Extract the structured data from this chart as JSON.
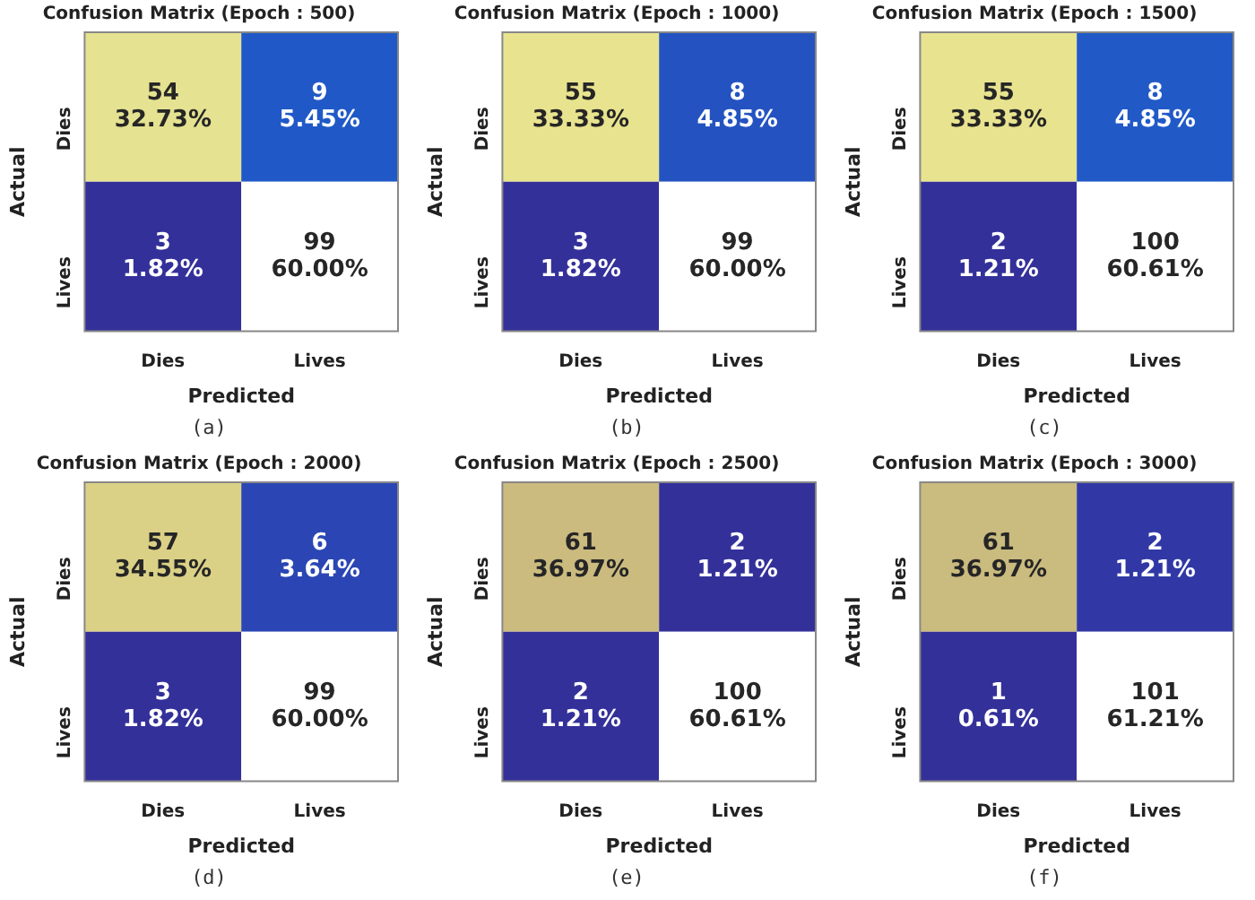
{
  "chart_data": [
    {
      "type": "heatmap",
      "title": "Confusion Matrix (Epoch : 500)",
      "xlabel": "Predicted",
      "ylabel": "Actual",
      "categories": [
        "Dies",
        "Lives"
      ],
      "y_categories": [
        "Dies",
        "Lives"
      ],
      "cells": [
        [
          54,
          9
        ],
        [
          3,
          99
        ]
      ],
      "data_labels": true,
      "annotations": [
        "32.73%",
        "5.45%",
        "1.82%",
        "60.00%",
        "(a)"
      ]
    },
    {
      "type": "heatmap",
      "title": "Confusion Matrix (Epoch : 1000)",
      "xlabel": "Predicted",
      "ylabel": "Actual",
      "categories": [
        "Dies",
        "Lives"
      ],
      "y_categories": [
        "Dies",
        "Lives"
      ],
      "cells": [
        [
          55,
          8
        ],
        [
          3,
          99
        ]
      ],
      "data_labels": true,
      "annotations": [
        "33.33%",
        "4.85%",
        "1.82%",
        "60.00%",
        "(b)"
      ]
    },
    {
      "type": "heatmap",
      "title": "Confusion Matrix (Epoch : 1500)",
      "xlabel": "Predicted",
      "ylabel": "Actual",
      "categories": [
        "Dies",
        "Lives"
      ],
      "y_categories": [
        "Dies",
        "Lives"
      ],
      "cells": [
        [
          55,
          8
        ],
        [
          2,
          100
        ]
      ],
      "data_labels": true,
      "annotations": [
        "33.33%",
        "4.85%",
        "1.21%",
        "60.61%",
        "(c)"
      ]
    },
    {
      "type": "heatmap",
      "title": "Confusion Matrix (Epoch : 2000)",
      "xlabel": "Predicted",
      "ylabel": "Actual",
      "categories": [
        "Dies",
        "Lives"
      ],
      "y_categories": [
        "Dies",
        "Lives"
      ],
      "cells": [
        [
          57,
          6
        ],
        [
          3,
          99
        ]
      ],
      "data_labels": true,
      "annotations": [
        "34.55%",
        "3.64%",
        "1.82%",
        "60.00%",
        "(d)"
      ]
    },
    {
      "type": "heatmap",
      "title": "Confusion Matrix (Epoch : 2500)",
      "xlabel": "Predicted",
      "ylabel": "Actual",
      "categories": [
        "Dies",
        "Lives"
      ],
      "y_categories": [
        "Dies",
        "Lives"
      ],
      "cells": [
        [
          61,
          2
        ],
        [
          2,
          100
        ]
      ],
      "data_labels": true,
      "annotations": [
        "36.97%",
        "1.21%",
        "1.21%",
        "60.61%",
        "(e)"
      ]
    },
    {
      "type": "heatmap",
      "title": "Confusion Matrix (Epoch : 3000)",
      "xlabel": "Predicted",
      "ylabel": "Actual",
      "categories": [
        "Dies",
        "Lives"
      ],
      "y_categories": [
        "Dies",
        "Lives"
      ],
      "cells": [
        [
          61,
          2
        ],
        [
          1,
          101
        ]
      ],
      "data_labels": true,
      "annotations": [
        "36.97%",
        "1.21%",
        "0.61%",
        "61.21%",
        "(f)"
      ]
    }
  ]
}
